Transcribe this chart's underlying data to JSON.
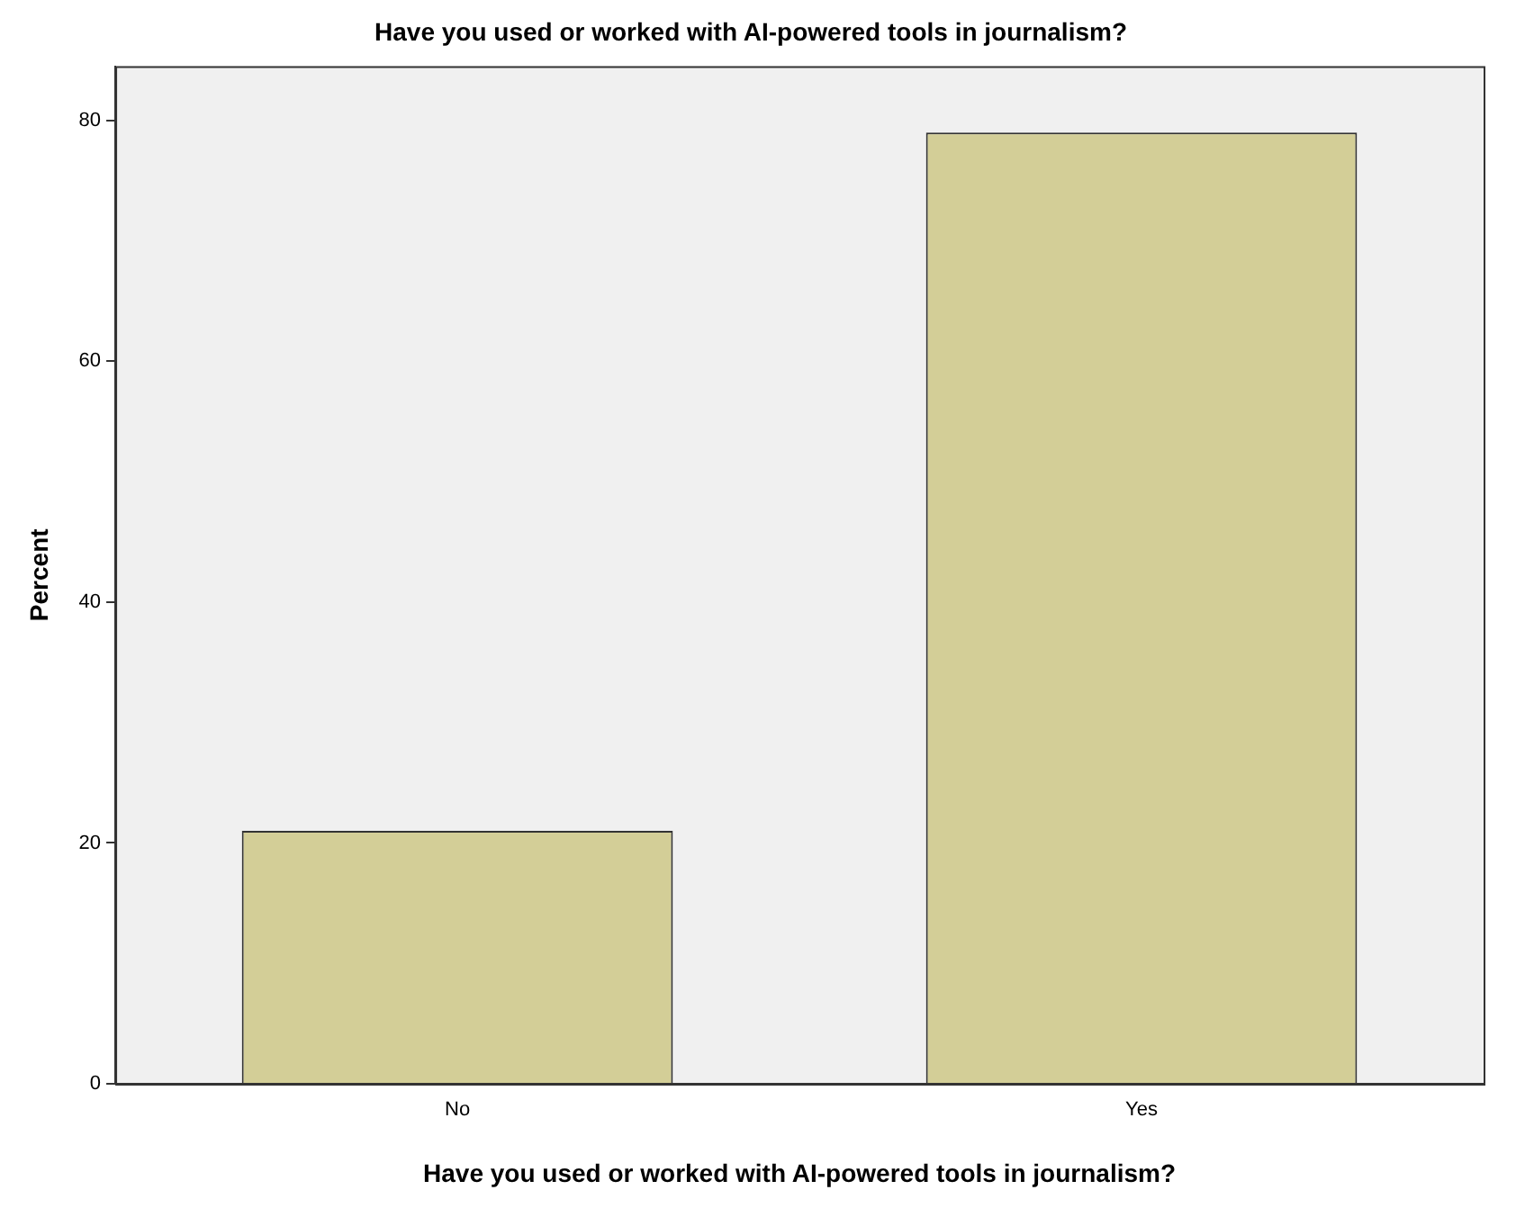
{
  "chart_data": {
    "type": "bar",
    "title": "Have you used or worked with AI-powered tools in journalism?",
    "xlabel": "Have you used or worked with AI-powered tools in journalism?",
    "ylabel": "Percent",
    "categories": [
      "No",
      "Yes"
    ],
    "values": [
      21,
      79
    ],
    "color": "#d3ce97",
    "ylim": [
      0,
      84.5
    ],
    "yticks": [
      0,
      20,
      40,
      60,
      80
    ]
  }
}
